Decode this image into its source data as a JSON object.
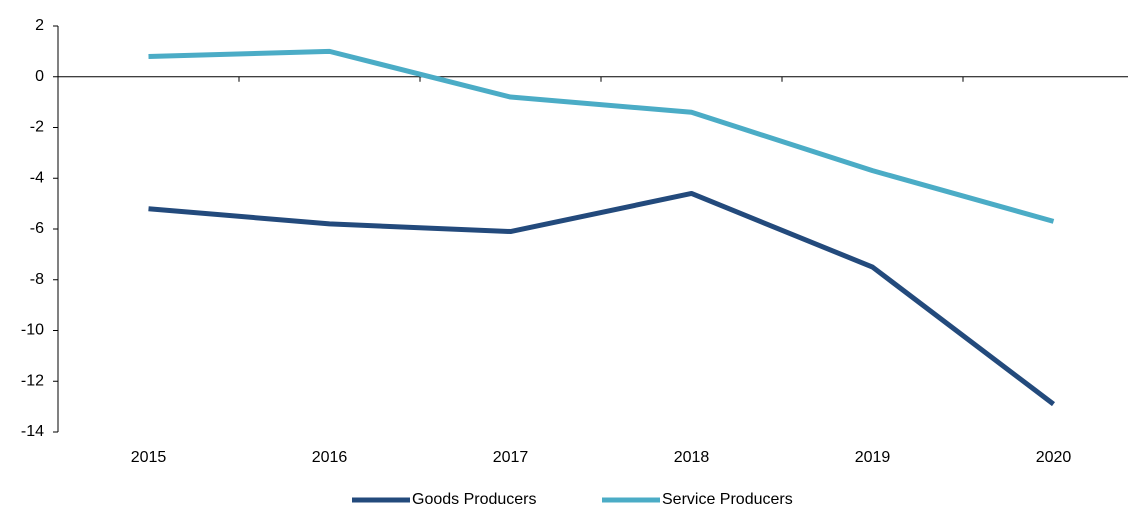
{
  "chart_data": {
    "type": "line",
    "categories": [
      "2015",
      "2016",
      "2017",
      "2018",
      "2019",
      "2020"
    ],
    "series": [
      {
        "name": "Goods Producers",
        "color": "#234a7c",
        "values": [
          -5.2,
          -5.8,
          -6.1,
          -4.6,
          -7.5,
          -12.9
        ]
      },
      {
        "name": "Service Producers",
        "color": "#4bacc6",
        "values": [
          0.8,
          1.0,
          -0.8,
          -1.4,
          -3.7,
          -5.7
        ]
      }
    ],
    "ylim": [
      -14,
      2
    ],
    "yticks": [
      -14,
      -12,
      -10,
      -8,
      -6,
      -4,
      -2,
      0,
      2
    ],
    "grid": false,
    "legend": "bottom"
  }
}
